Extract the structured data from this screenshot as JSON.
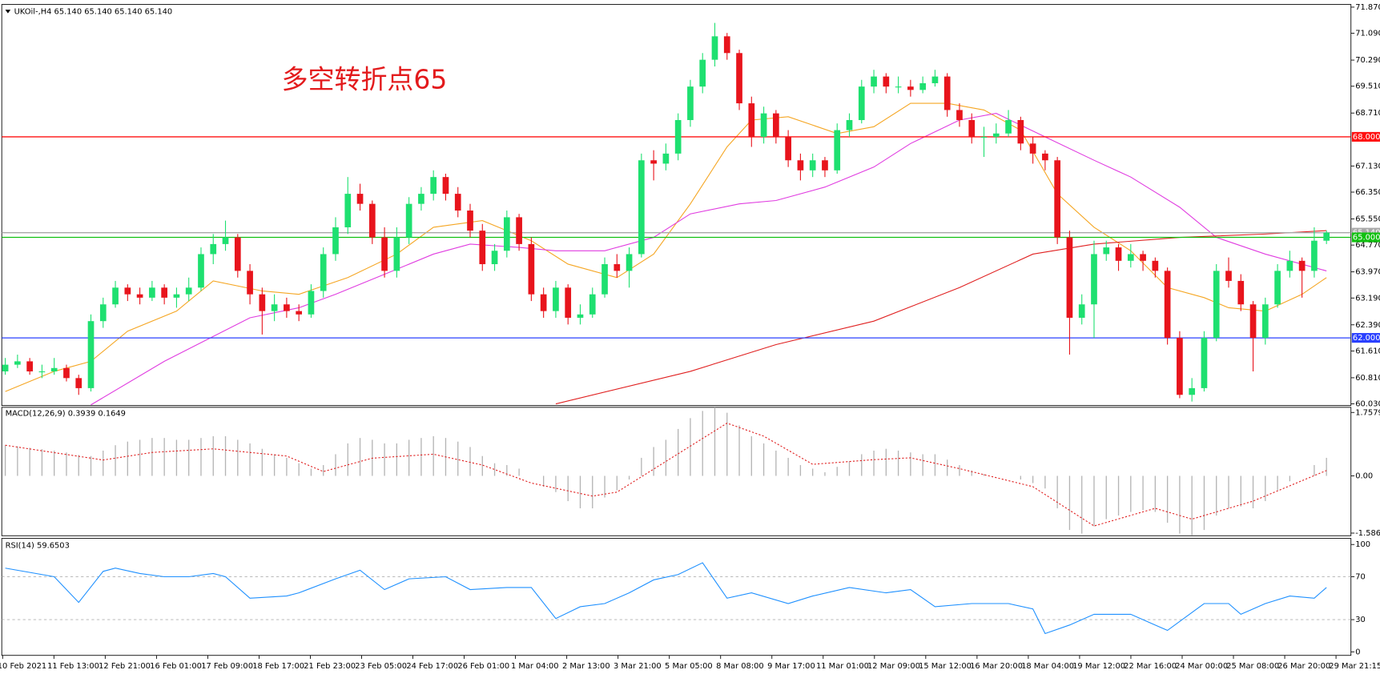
{
  "chart_data": [
    {
      "type": "candlestick",
      "title": "UKOil-,H4  65.140 65.140 65.140 65.140",
      "annotation": "多空转折点65",
      "bull_color": "#1ee070",
      "bear_color": "#e8141c",
      "ylim": [
        59.98,
        71.95
      ],
      "yticks": [
        {
          "value": 71.87,
          "label": "71.870"
        },
        {
          "value": 71.09,
          "label": "71.090"
        },
        {
          "value": 70.29,
          "label": "70.290"
        },
        {
          "value": 69.51,
          "label": "69.510"
        },
        {
          "value": 68.71,
          "label": "68.710"
        },
        {
          "value": 67.13,
          "label": "67.130"
        },
        {
          "value": 66.35,
          "label": "66.350"
        },
        {
          "value": 65.55,
          "label": "65.550"
        },
        {
          "value": 64.77,
          "label": "64.770"
        },
        {
          "value": 63.97,
          "label": "63.970"
        },
        {
          "value": 63.19,
          "label": "63.190"
        },
        {
          "value": 62.39,
          "label": "62.390"
        },
        {
          "value": 61.61,
          "label": "61.610"
        },
        {
          "value": 60.81,
          "label": "60.810"
        },
        {
          "value": 60.03,
          "label": "60.030"
        }
      ],
      "levels": [
        {
          "value": 65.14,
          "label": "65.140",
          "color": "#a8a8a8"
        },
        {
          "value": 68,
          "label": "68.000",
          "color": "#ff1010"
        },
        {
          "value": 65,
          "label": "65.000",
          "color": "#10c010"
        },
        {
          "value": 62,
          "label": "62.000",
          "color": "#2a40ff"
        }
      ],
      "candles": [
        [
          61.0,
          61.4,
          60.9,
          61.2
        ],
        [
          61.2,
          61.5,
          61.1,
          61.3
        ],
        [
          61.3,
          61.4,
          60.9,
          61.0
        ],
        [
          61.0,
          61.2,
          60.8,
          61.0
        ],
        [
          61.0,
          61.4,
          60.9,
          61.1
        ],
        [
          61.1,
          61.2,
          60.7,
          60.8
        ],
        [
          60.8,
          60.9,
          60.3,
          60.5
        ],
        [
          60.5,
          62.7,
          60.4,
          62.5
        ],
        [
          62.5,
          63.2,
          62.3,
          63.0
        ],
        [
          63.0,
          63.7,
          62.9,
          63.5
        ],
        [
          63.5,
          63.6,
          63.1,
          63.3
        ],
        [
          63.3,
          63.5,
          63.0,
          63.2
        ],
        [
          63.2,
          63.7,
          63.1,
          63.5
        ],
        [
          63.5,
          63.6,
          63.0,
          63.2
        ],
        [
          63.2,
          63.5,
          62.9,
          63.3
        ],
        [
          63.3,
          63.8,
          63.1,
          63.5
        ],
        [
          63.5,
          64.7,
          63.4,
          64.5
        ],
        [
          64.5,
          65.1,
          64.2,
          64.8
        ],
        [
          64.8,
          65.5,
          64.6,
          65.0
        ],
        [
          65.0,
          65.1,
          63.8,
          64.0
        ],
        [
          64.0,
          64.2,
          63.0,
          63.3
        ],
        [
          63.3,
          63.5,
          62.1,
          62.8
        ],
        [
          62.8,
          63.3,
          62.5,
          63.0
        ],
        [
          63.0,
          63.2,
          62.6,
          62.8
        ],
        [
          62.8,
          63.0,
          62.5,
          62.7
        ],
        [
          62.7,
          63.6,
          62.6,
          63.4
        ],
        [
          63.4,
          64.7,
          63.2,
          64.5
        ],
        [
          64.5,
          65.6,
          64.3,
          65.3
        ],
        [
          65.3,
          66.8,
          65.1,
          66.3
        ],
        [
          66.3,
          66.6,
          65.8,
          66.0
        ],
        [
          66.0,
          66.1,
          64.8,
          65.0
        ],
        [
          65.0,
          65.3,
          63.8,
          64.0
        ],
        [
          64.0,
          65.3,
          63.8,
          65.0
        ],
        [
          65.0,
          66.2,
          64.8,
          66.0
        ],
        [
          66.0,
          66.5,
          65.8,
          66.3
        ],
        [
          66.3,
          67.0,
          66.1,
          66.8
        ],
        [
          66.8,
          66.9,
          66.1,
          66.3
        ],
        [
          66.3,
          66.5,
          65.6,
          65.8
        ],
        [
          65.8,
          66.0,
          65.0,
          65.2
        ],
        [
          65.2,
          65.4,
          64.0,
          64.2
        ],
        [
          64.2,
          64.8,
          64.0,
          64.6
        ],
        [
          64.6,
          65.8,
          64.4,
          65.6
        ],
        [
          65.6,
          65.7,
          64.6,
          64.8
        ],
        [
          64.8,
          65.0,
          63.1,
          63.3
        ],
        [
          63.3,
          63.5,
          62.6,
          62.8
        ],
        [
          62.8,
          63.7,
          62.6,
          63.5
        ],
        [
          63.5,
          63.6,
          62.4,
          62.6
        ],
        [
          62.6,
          63.0,
          62.4,
          62.7
        ],
        [
          62.7,
          63.5,
          62.6,
          63.3
        ],
        [
          63.3,
          64.4,
          63.2,
          64.2
        ],
        [
          64.2,
          64.5,
          63.8,
          64.0
        ],
        [
          64.0,
          64.7,
          63.5,
          64.5
        ],
        [
          64.5,
          67.5,
          64.4,
          67.3
        ],
        [
          67.3,
          67.6,
          66.7,
          67.2
        ],
        [
          67.2,
          67.8,
          67.0,
          67.5
        ],
        [
          67.5,
          68.7,
          67.3,
          68.5
        ],
        [
          68.5,
          69.7,
          68.3,
          69.5
        ],
        [
          69.5,
          70.5,
          69.3,
          70.3
        ],
        [
          70.3,
          71.4,
          70.1,
          71.0
        ],
        [
          71.0,
          71.1,
          70.3,
          70.5
        ],
        [
          70.5,
          70.6,
          68.8,
          69.0
        ],
        [
          69.0,
          69.2,
          67.7,
          68.0
        ],
        [
          68.0,
          68.9,
          67.8,
          68.7
        ],
        [
          68.7,
          68.8,
          67.8,
          68.0
        ],
        [
          68.0,
          68.2,
          67.1,
          67.3
        ],
        [
          67.3,
          67.5,
          66.7,
          67.0
        ],
        [
          67.0,
          67.5,
          66.8,
          67.3
        ],
        [
          67.3,
          67.4,
          66.8,
          67.0
        ],
        [
          67.0,
          68.4,
          66.9,
          68.2
        ],
        [
          68.2,
          68.7,
          68.0,
          68.5
        ],
        [
          68.5,
          69.7,
          68.4,
          69.5
        ],
        [
          69.5,
          70.0,
          69.3,
          69.8
        ],
        [
          69.8,
          69.9,
          69.3,
          69.5
        ],
        [
          69.5,
          69.8,
          69.3,
          69.5
        ],
        [
          69.5,
          69.7,
          69.2,
          69.4
        ],
        [
          69.4,
          69.8,
          69.3,
          69.6
        ],
        [
          69.6,
          70.0,
          69.5,
          69.8
        ],
        [
          69.8,
          69.9,
          68.6,
          68.8
        ],
        [
          68.8,
          69.0,
          68.3,
          68.5
        ],
        [
          68.5,
          68.7,
          67.8,
          68.0
        ],
        [
          68.0,
          68.3,
          67.4,
          68.0
        ],
        [
          68.0,
          68.4,
          67.8,
          68.1
        ],
        [
          68.1,
          68.8,
          68.0,
          68.5
        ],
        [
          68.5,
          68.6,
          67.6,
          67.8
        ],
        [
          67.8,
          68.0,
          67.2,
          67.5
        ],
        [
          67.5,
          67.6,
          67.0,
          67.3
        ],
        [
          67.3,
          67.4,
          64.8,
          65.0
        ],
        [
          65.0,
          65.2,
          61.5,
          62.6
        ],
        [
          62.6,
          63.3,
          62.4,
          63.0
        ],
        [
          63.0,
          64.9,
          62.0,
          64.5
        ],
        [
          64.5,
          64.9,
          64.3,
          64.7
        ],
        [
          64.7,
          64.8,
          64.0,
          64.3
        ],
        [
          64.3,
          64.8,
          64.1,
          64.5
        ],
        [
          64.5,
          64.6,
          64.0,
          64.3
        ],
        [
          64.3,
          64.4,
          63.8,
          64.0
        ],
        [
          64.0,
          64.1,
          61.8,
          62.0
        ],
        [
          62.0,
          62.2,
          60.2,
          60.3
        ],
        [
          60.3,
          60.8,
          60.1,
          60.5
        ],
        [
          60.5,
          62.2,
          60.4,
          62.0
        ],
        [
          62.0,
          64.2,
          61.9,
          64.0
        ],
        [
          64.0,
          64.4,
          63.5,
          63.7
        ],
        [
          63.7,
          63.9,
          62.8,
          63.0
        ],
        [
          63.0,
          63.1,
          61.0,
          62.0
        ],
        [
          62.0,
          63.2,
          61.8,
          63.0
        ],
        [
          63.0,
          64.2,
          62.9,
          64.0
        ],
        [
          64.0,
          64.6,
          63.8,
          64.3
        ],
        [
          64.3,
          64.4,
          63.2,
          64.0
        ],
        [
          64.0,
          65.3,
          63.8,
          64.9
        ],
        [
          64.9,
          65.2,
          64.8,
          65.14
        ]
      ],
      "series": [
        {
          "color": "#f5a623",
          "x": [
            0,
            4,
            7,
            10,
            14,
            17,
            21,
            24,
            28,
            32,
            35,
            39,
            43,
            46,
            50,
            53,
            56,
            59,
            61,
            64,
            68,
            71,
            74,
            77,
            80,
            83,
            86,
            89,
            92,
            95,
            98,
            100,
            103,
            106,
            108
          ],
          "values": [
            60.4,
            61.0,
            61.3,
            62.2,
            62.8,
            63.7,
            63.4,
            63.3,
            63.8,
            64.5,
            65.3,
            65.5,
            64.9,
            64.2,
            63.8,
            64.5,
            66.0,
            67.7,
            68.5,
            68.6,
            68.1,
            68.3,
            69.0,
            69.0,
            68.8,
            68.2,
            66.3,
            65.3,
            64.6,
            63.5,
            63.2,
            62.9,
            62.8,
            63.3,
            63.8
          ]
        },
        {
          "color": "#e03ce0",
          "x": [
            7,
            13,
            20,
            24,
            27,
            31,
            35,
            38,
            42,
            45,
            49,
            53,
            56,
            60,
            63,
            67,
            71,
            74,
            78,
            81,
            85,
            89,
            92,
            96,
            99,
            103,
            108
          ],
          "values": [
            60.0,
            61.3,
            62.6,
            62.9,
            63.3,
            63.9,
            64.5,
            64.8,
            64.7,
            64.6,
            64.6,
            65.0,
            65.7,
            66.0,
            66.1,
            66.5,
            67.1,
            67.8,
            68.5,
            68.7,
            68.0,
            67.3,
            66.8,
            65.9,
            65.0,
            64.5,
            64.0
          ]
        },
        {
          "color": "#e02020",
          "x": [
            45,
            56,
            63,
            71,
            78,
            84,
            89,
            96,
            103,
            108
          ],
          "values": [
            60.03,
            61.0,
            61.8,
            62.5,
            63.5,
            64.5,
            64.8,
            65.0,
            65.1,
            65.2
          ]
        }
      ]
    },
    {
      "type": "macd",
      "title": "MACD(12,26,9) 0.3939 0.1649",
      "ylim": [
        -1.66,
        1.9
      ],
      "yticks": [
        1.7579,
        {
          "value": 0,
          "label": "0.00"
        },
        -1.5867
      ],
      "histogram": {
        "color": "#b4b4b4",
        "values": [
          0.85,
          0.82,
          0.78,
          0.74,
          0.7,
          0.65,
          0.58,
          0.55,
          0.7,
          0.85,
          0.95,
          1.0,
          1.05,
          1.05,
          1.0,
          1.0,
          1.05,
          1.1,
          1.1,
          1.0,
          0.9,
          0.75,
          0.6,
          0.5,
          0.35,
          0.2,
          0.3,
          0.6,
          0.9,
          1.05,
          1.0,
          0.9,
          0.9,
          1.0,
          1.05,
          1.1,
          1.05,
          0.95,
          0.8,
          0.55,
          0.35,
          0.3,
          0.2,
          0.0,
          -0.3,
          -0.45,
          -0.7,
          -0.9,
          -0.9,
          -0.6,
          -0.4,
          -0.1,
          0.5,
          0.8,
          1.0,
          1.3,
          1.6,
          1.8,
          1.9,
          1.75,
          1.4,
          1.1,
          0.9,
          0.7,
          0.5,
          0.3,
          0.2,
          0.1,
          0.25,
          0.4,
          0.6,
          0.7,
          0.75,
          0.7,
          0.65,
          0.6,
          0.6,
          0.45,
          0.3,
          0.15,
          0.05,
          0.0,
          0.0,
          -0.1,
          -0.2,
          -0.35,
          -0.9,
          -1.5,
          -1.6,
          -1.4,
          -1.2,
          -1.1,
          -1.0,
          -0.95,
          -1.0,
          -1.3,
          -1.6,
          -1.65,
          -1.5,
          -1.1,
          -0.9,
          -0.85,
          -0.9,
          -0.7,
          -0.4,
          -0.15,
          0.0,
          0.3,
          0.5
        ]
      },
      "signal": {
        "color": "#e02020",
        "x": [
          0,
          8,
          12,
          17,
          23,
          26,
          30,
          35,
          39,
          43,
          48,
          50,
          54,
          59,
          62,
          66,
          71,
          74,
          78,
          84,
          89,
          94,
          97,
          102,
          108
        ],
        "values": [
          0.85,
          0.44,
          0.65,
          0.75,
          0.55,
          0.12,
          0.49,
          0.6,
          0.3,
          -0.2,
          -0.56,
          -0.45,
          0.4,
          1.46,
          1.1,
          0.32,
          0.45,
          0.5,
          0.2,
          -0.3,
          -1.39,
          -0.9,
          -1.2,
          -0.7,
          0.15
        ]
      }
    },
    {
      "type": "rsi",
      "title": "RSI(14) 59.6503",
      "ylim": [
        -3.3,
        105.7
      ],
      "yticks": [
        100,
        70,
        30,
        0
      ],
      "levels": [
        70,
        30
      ],
      "color": "#1e90ff",
      "x": [
        0,
        3,
        4,
        6,
        8,
        9,
        11,
        13,
        15,
        17,
        18,
        20,
        23,
        24,
        27,
        29,
        31,
        33,
        36,
        38,
        41,
        43,
        45,
        47,
        49,
        51,
        53,
        55,
        57,
        59,
        61,
        64,
        66,
        69,
        72,
        74,
        76,
        79,
        82,
        84,
        85,
        87,
        89,
        92,
        94,
        95,
        98,
        100,
        101,
        103,
        105,
        107,
        108
      ],
      "values": [
        78,
        72,
        70,
        46,
        75,
        78,
        73,
        70,
        70,
        73,
        70,
        50,
        52,
        55,
        68,
        76,
        58,
        68,
        70,
        58,
        60,
        60,
        31,
        42,
        45,
        55,
        67,
        72,
        83,
        50,
        55,
        45,
        52,
        60,
        55,
        58,
        42,
        45,
        45,
        40,
        17,
        25,
        35,
        35,
        25,
        20,
        45,
        45,
        35,
        45,
        52,
        50,
        60
      ],
      "time_labels": [
        "10 Feb 2021",
        "11 Feb 13:00",
        "12 Feb 21:00",
        "16 Feb 01:00",
        "17 Feb 09:00",
        "18 Feb 17:00",
        "21 Feb 23:00",
        "23 Feb 05:00",
        "24 Feb 17:00",
        "26 Feb 01:00",
        "1 Mar 04:00",
        "2 Mar 13:00",
        "3 Mar 21:00",
        "5 Mar 05:00",
        "8 Mar 08:00",
        "9 Mar 17:00",
        "11 Mar 01:00",
        "12 Mar 09:00",
        "15 Mar 12:00",
        "16 Mar 20:00",
        "18 Mar 04:00",
        "19 Mar 12:00",
        "22 Mar 16:00",
        "24 Mar 00:00",
        "25 Mar 08:00",
        "26 Mar 20:00",
        "29 Mar 21:15"
      ]
    }
  ]
}
